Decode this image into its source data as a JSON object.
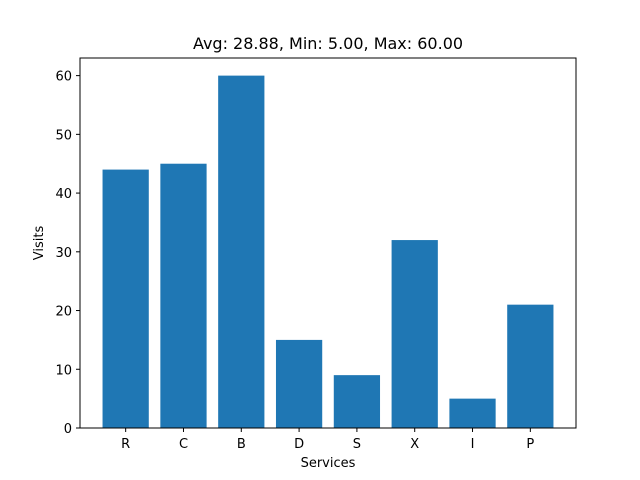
{
  "chart_data": {
    "type": "bar",
    "title": "Avg: 28.88, Min: 5.00, Max: 60.00",
    "xlabel": "Services",
    "ylabel": "Visits",
    "categories": [
      "R",
      "C",
      "B",
      "D",
      "S",
      "X",
      "I",
      "P"
    ],
    "values": [
      44,
      45,
      60,
      15,
      9,
      32,
      5,
      21
    ],
    "ylim": [
      0,
      63
    ],
    "yticks": [
      0,
      10,
      20,
      30,
      40,
      50,
      60
    ],
    "grid": false,
    "bar_color": "#1f77b4"
  }
}
